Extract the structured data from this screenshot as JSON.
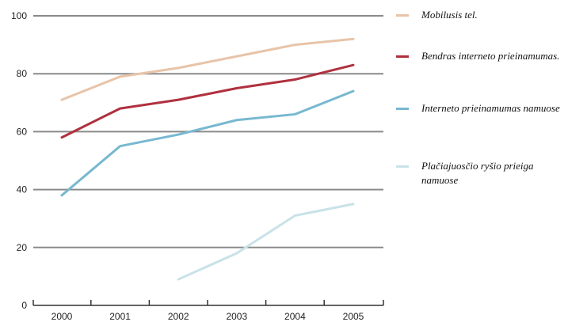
{
  "chart_data": {
    "type": "line",
    "title": "",
    "xlabel": "",
    "ylabel": "",
    "x": [
      2000,
      2001,
      2002,
      2003,
      2004,
      2005
    ],
    "ylim": [
      0,
      100
    ],
    "yticks": [
      0,
      20,
      40,
      60,
      80,
      100
    ],
    "grid": true,
    "legend": "right",
    "series": [
      {
        "name": "Mobilusis tel.",
        "color": "#e8c4a8",
        "values": [
          71,
          79,
          82,
          86,
          90,
          92
        ]
      },
      {
        "name": "Bendras interneto prieinamumas.",
        "color": "#b0303f",
        "values": [
          58,
          68,
          71,
          75,
          78,
          83
        ]
      },
      {
        "name": "Interneto prieinamumas namuose",
        "color": "#78b8d0",
        "values": [
          38,
          55,
          59,
          64,
          66,
          74
        ]
      },
      {
        "name": "Plačiajuosčio ryšio prieiga namuose",
        "color": "#c8e2e8",
        "values": [
          null,
          null,
          9,
          18,
          31,
          35
        ]
      }
    ]
  }
}
